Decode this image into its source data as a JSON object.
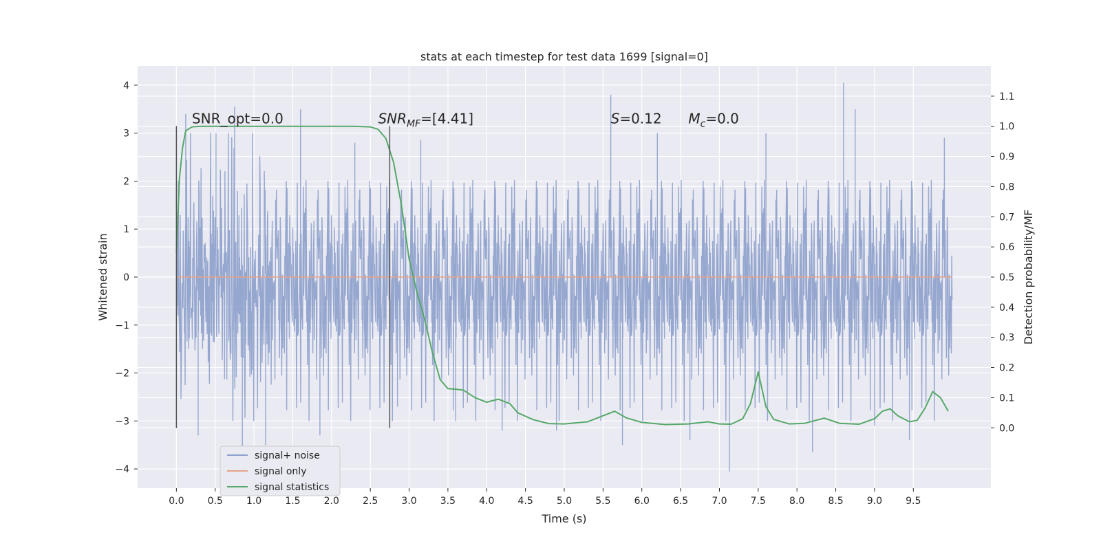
{
  "chart_data": {
    "type": "line",
    "title": "stats at each timestep for test data 1699 [signal=0]",
    "xlabel": "Time (s)",
    "ylabel": "Whitened strain",
    "y2label": "Detection probability/MF",
    "xlim": [
      -0.5,
      10.5
    ],
    "ylim": [
      -4.4,
      4.4
    ],
    "y2lim": [
      -0.2,
      1.2
    ],
    "x_ticks": [
      0.0,
      0.5,
      1.0,
      1.5,
      2.0,
      2.5,
      3.0,
      3.5,
      4.0,
      4.5,
      5.0,
      5.5,
      6.0,
      6.5,
      7.0,
      7.5,
      8.0,
      8.5,
      9.0,
      9.5
    ],
    "x_tick_labels": [
      "0.0",
      "0.5",
      "1.0",
      "1.5",
      "2.0",
      "2.5",
      "3.0",
      "3.5",
      "4.0",
      "4.5",
      "5.0",
      "5.5",
      "6.0",
      "6.5",
      "7.0",
      "7.5",
      "8.0",
      "8.5",
      "9.0",
      "9.5"
    ],
    "y_ticks": [
      -4,
      -3,
      -2,
      -1,
      0,
      1,
      2,
      3,
      4
    ],
    "y_tick_labels": [
      "−4",
      "−3",
      "−2",
      "−1",
      "0",
      "1",
      "2",
      "3",
      "4"
    ],
    "y2_ticks": [
      0.0,
      0.1,
      0.2,
      0.3,
      0.4,
      0.5,
      0.6,
      0.7,
      0.8,
      0.9,
      1.0,
      1.1
    ],
    "y2_tick_labels": [
      "0.0",
      "0.1",
      "0.2",
      "0.3",
      "0.4",
      "0.5",
      "0.6",
      "0.7",
      "0.8",
      "0.9",
      "1.0",
      "1.1"
    ],
    "grid": true,
    "legend_placement": "lower-left",
    "vertical_markers": [
      0.0,
      2.75
    ],
    "annotations": [
      {
        "id": "snr-opt",
        "x": 0.2,
        "y": 3.2,
        "text": "SNR_opt=0.0"
      },
      {
        "id": "snr-mf",
        "x": 2.6,
        "y": 3.2,
        "text_main": "SNR",
        "text_sub": "MF",
        "text_rest": "=[4.41]"
      },
      {
        "id": "s-value",
        "x": 5.6,
        "y": 3.2,
        "text_main": "S",
        "text_rest": "=0.12"
      },
      {
        "id": "mc-value",
        "x": 6.6,
        "y": 3.2,
        "text_main": "M",
        "text_sub": "c",
        "text_rest": "=0.0"
      }
    ],
    "series": [
      {
        "name": "signal+ noise",
        "color": "#8da0cb",
        "axis": "left",
        "kind": "noise",
        "x_range": [
          0.0,
          10.0
        ],
        "typical_envelope": [
          -2.0,
          2.0
        ],
        "peaks": [
          {
            "x": 0.12,
            "y": 3.4
          },
          {
            "x": 0.28,
            "y": -3.3
          },
          {
            "x": 0.51,
            "y": 3.0
          },
          {
            "x": 0.75,
            "y": 3.55
          },
          {
            "x": 0.85,
            "y": -3.6
          },
          {
            "x": 1.15,
            "y": -3.5
          },
          {
            "x": 1.6,
            "y": 3.5
          },
          {
            "x": 1.85,
            "y": -3.3
          },
          {
            "x": 2.3,
            "y": 2.8
          },
          {
            "x": 2.85,
            "y": -2.7
          },
          {
            "x": 3.15,
            "y": 2.85
          },
          {
            "x": 3.6,
            "y": -3.0
          },
          {
            "x": 4.2,
            "y": -3.2
          },
          {
            "x": 4.9,
            "y": -3.2
          },
          {
            "x": 5.6,
            "y": 3.8
          },
          {
            "x": 5.75,
            "y": -3.5
          },
          {
            "x": 6.2,
            "y": 3.0
          },
          {
            "x": 6.62,
            "y": -3.4
          },
          {
            "x": 7.13,
            "y": -4.05
          },
          {
            "x": 7.6,
            "y": 3.0
          },
          {
            "x": 7.62,
            "y": -3.0
          },
          {
            "x": 8.2,
            "y": -3.65
          },
          {
            "x": 8.6,
            "y": 4.05
          },
          {
            "x": 8.75,
            "y": 3.5
          },
          {
            "x": 9.0,
            "y": -3.1
          },
          {
            "x": 9.45,
            "y": -3.4
          },
          {
            "x": 9.9,
            "y": 2.9
          }
        ]
      },
      {
        "name": "signal only",
        "color": "#e5a388",
        "axis": "left",
        "kind": "line",
        "x": [
          0.0,
          10.0
        ],
        "values": [
          0.0,
          0.0
        ]
      },
      {
        "name": "signal statistics",
        "color": "#55a868",
        "axis": "right",
        "kind": "line",
        "x": [
          0.0,
          0.04,
          0.08,
          0.12,
          0.2,
          0.3,
          0.5,
          1.0,
          1.5,
          2.0,
          2.3,
          2.5,
          2.6,
          2.7,
          2.8,
          2.9,
          3.0,
          3.1,
          3.2,
          3.3,
          3.4,
          3.5,
          3.6,
          3.7,
          3.85,
          4.0,
          4.15,
          4.3,
          4.4,
          4.6,
          4.8,
          5.0,
          5.3,
          5.5,
          5.65,
          5.8,
          6.0,
          6.3,
          6.6,
          6.85,
          7.0,
          7.15,
          7.3,
          7.4,
          7.5,
          7.6,
          7.7,
          7.9,
          8.1,
          8.35,
          8.55,
          8.8,
          9.0,
          9.1,
          9.2,
          9.3,
          9.45,
          9.55,
          9.65,
          9.75,
          9.85,
          9.95
        ],
        "values": [
          0.58,
          0.83,
          0.93,
          0.985,
          0.998,
          1.0,
          1.0,
          1.0,
          1.0,
          1.0,
          1.0,
          0.998,
          0.99,
          0.96,
          0.88,
          0.74,
          0.56,
          0.45,
          0.36,
          0.25,
          0.16,
          0.13,
          0.128,
          0.125,
          0.1,
          0.085,
          0.095,
          0.08,
          0.05,
          0.027,
          0.014,
          0.013,
          0.02,
          0.04,
          0.055,
          0.033,
          0.018,
          0.011,
          0.013,
          0.02,
          0.013,
          0.012,
          0.03,
          0.08,
          0.185,
          0.07,
          0.028,
          0.013,
          0.015,
          0.032,
          0.015,
          0.012,
          0.03,
          0.055,
          0.063,
          0.04,
          0.02,
          0.025,
          0.065,
          0.12,
          0.1,
          0.055
        ]
      }
    ]
  }
}
